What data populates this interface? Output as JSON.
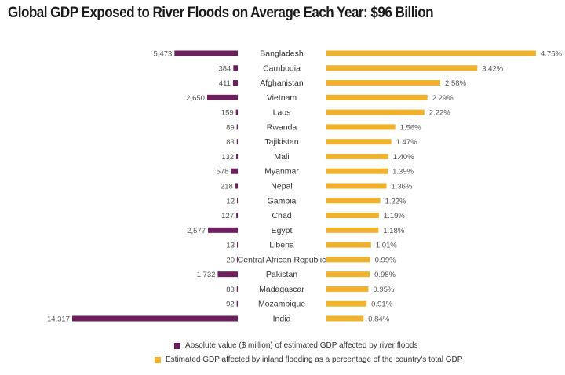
{
  "chart_data": {
    "type": "bar",
    "title": "Global GDP Exposed to River Floods on Average Each Year: $96 Billion",
    "categories": [
      "Bangladesh",
      "Cambodia",
      "Afghanistan",
      "Vietnam",
      "Laos",
      "Rwanda",
      "Tajikistan",
      "Mali",
      "Myanmar",
      "Nepal",
      "Gambia",
      "Chad",
      "Egypt",
      "Liberia",
      "Central African Republic",
      "Pakistan",
      "Madagascar",
      "Mozambique",
      "India"
    ],
    "series": [
      {
        "name": "Absolute value ($ million) of estimated GDP affected by river floods",
        "color": "#6e1f5f",
        "values": [
          5473,
          384,
          411,
          2650,
          159,
          89,
          83,
          132,
          578,
          218,
          12,
          127,
          2577,
          13,
          20,
          1732,
          83,
          92,
          14317
        ],
        "labels": [
          "5,473",
          "384",
          "411",
          "2,650",
          "159",
          "89",
          "83",
          "132",
          "578",
          "218",
          "12",
          "127",
          "2,577",
          "13",
          "20",
          "1,732",
          "83",
          "92",
          "14,317"
        ]
      },
      {
        "name": "Estimated GDP affected by inland flooding as a percentage of the country's total GDP",
        "color": "#f0b22d",
        "values": [
          4.75,
          3.42,
          2.58,
          2.29,
          2.22,
          1.56,
          1.47,
          1.4,
          1.39,
          1.36,
          1.22,
          1.19,
          1.18,
          1.01,
          0.99,
          0.98,
          0.95,
          0.91,
          0.84
        ],
        "labels": [
          "4.75%",
          "3.42%",
          "2.58%",
          "2.29%",
          "2.22%",
          "1.56%",
          "1.47%",
          "1.40%",
          "1.39%",
          "1.36%",
          "1.22%",
          "1.19%",
          "1.18%",
          "1.01%",
          "0.99%",
          "0.98%",
          "0.95%",
          "0.91%",
          "0.84%"
        ]
      }
    ],
    "legend_position": "bottom",
    "grid": false
  }
}
